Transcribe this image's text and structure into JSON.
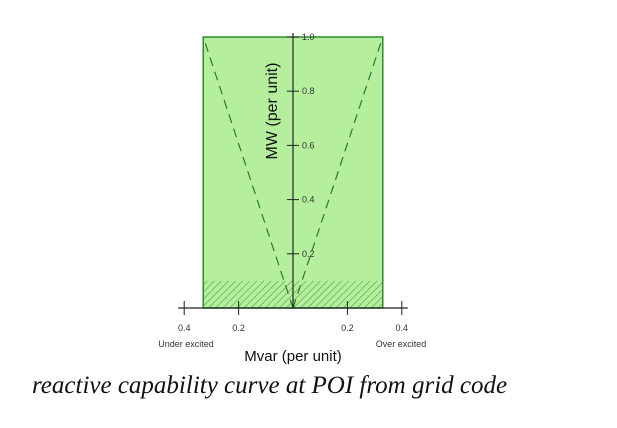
{
  "chart_data": {
    "type": "area",
    "title": "",
    "xlabel": "Mvar (per unit)",
    "ylabel": "MW (per unit)",
    "xlim": [
      -0.4,
      0.4
    ],
    "ylim": [
      0,
      1.0
    ],
    "x_ticks": [
      {
        "value": -0.4,
        "label": "0.4"
      },
      {
        "value": -0.2,
        "label": "0.2"
      },
      {
        "value": 0.2,
        "label": "0.2"
      },
      {
        "value": 0.4,
        "label": "0.4"
      }
    ],
    "y_ticks": [
      {
        "value": 0.2,
        "label": "0.2"
      },
      {
        "value": 0.4,
        "label": "0.4"
      },
      {
        "value": 0.6,
        "label": "0.6"
      },
      {
        "value": 0.8,
        "label": "0.8"
      },
      {
        "value": 1.0,
        "label": "1.0"
      }
    ],
    "x_side_labels": {
      "left": "Under excited",
      "right": "Over excited"
    },
    "region": {
      "x_min": -0.33,
      "x_max": 0.33,
      "y_min": 0,
      "y_max": 1.0,
      "color": "#b5ef9d",
      "edge_color": "#2e8b2e"
    },
    "hatched_band": {
      "y_min": 0,
      "y_max": 0.1
    },
    "dashed_lines": [
      {
        "name": "under-excited-limit",
        "x": [
          0,
          -0.33
        ],
        "y": [
          0,
          1.0
        ]
      },
      {
        "name": "over-excited-limit",
        "x": [
          0,
          0.33
        ],
        "y": [
          0,
          1.0
        ]
      }
    ]
  },
  "caption": "reactive capability curve at POI from grid code"
}
